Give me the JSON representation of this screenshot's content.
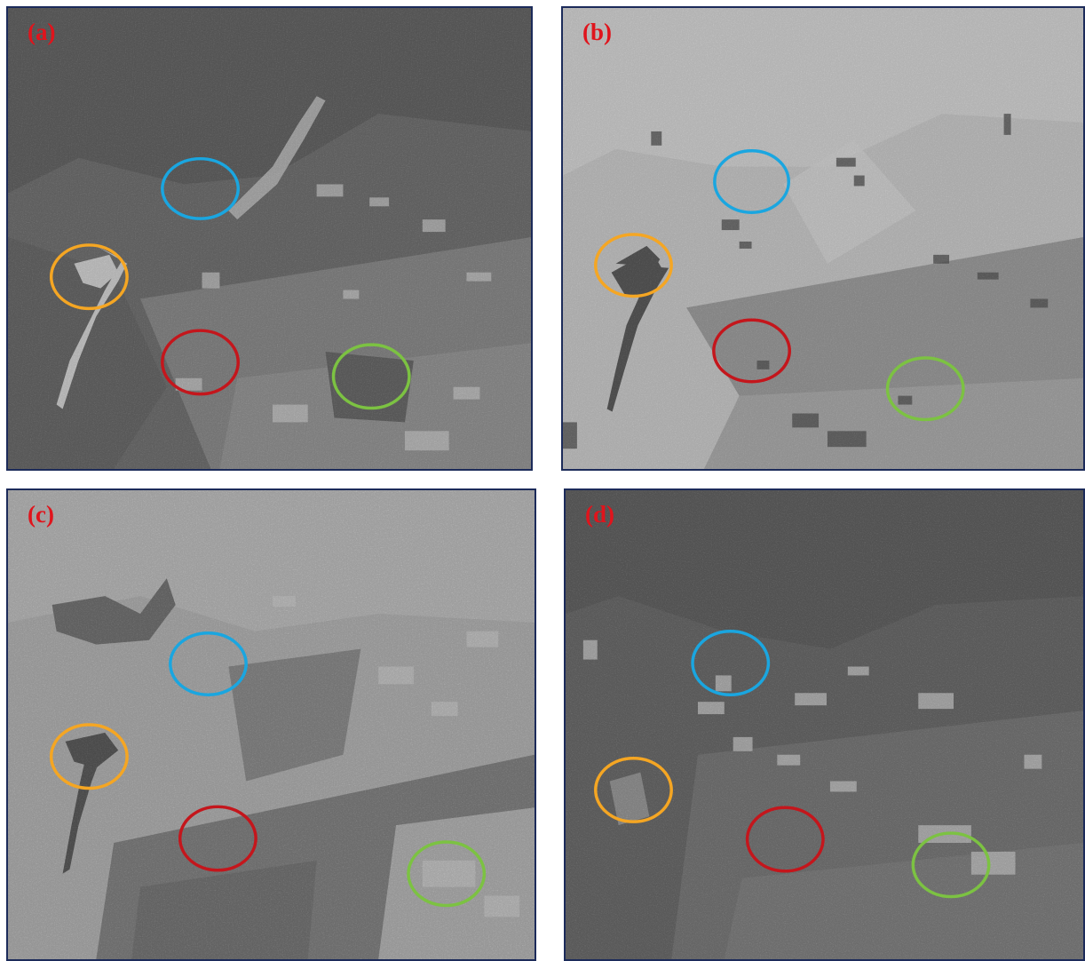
{
  "panels": [
    {
      "id": "a",
      "label": "(a)",
      "tone": "dark"
    },
    {
      "id": "b",
      "label": "(b)",
      "tone": "light"
    },
    {
      "id": "c",
      "label": "(c)",
      "tone": "light"
    },
    {
      "id": "d",
      "label": "(d)",
      "tone": "dark"
    }
  ],
  "label_color": "#e0141c",
  "circle_colors": {
    "blue": "#1aa6e0",
    "orange": "#f5a623",
    "red": "#c4161c",
    "green": "#7cc242"
  }
}
